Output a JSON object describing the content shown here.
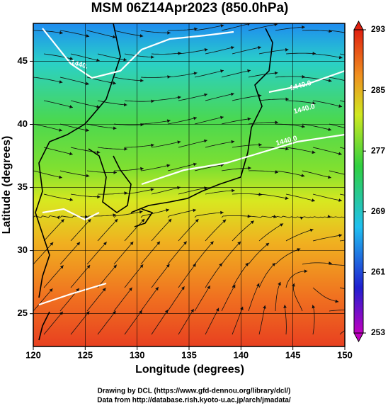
{
  "title": "MSM 06Z14Apr2023 (850.0hPa)",
  "x_label": "Longitude (degrees)",
  "y_label": "Latitude  (degrees)",
  "xlim": [
    120,
    150
  ],
  "xticks": [
    120,
    125,
    130,
    135,
    140,
    145,
    150
  ],
  "ylim": [
    22.4,
    48
  ],
  "yticks": [
    25,
    30,
    35,
    40,
    45
  ],
  "colorbar": {
    "lim": [
      253,
      293
    ],
    "ticks": [
      253,
      261,
      269,
      277,
      285,
      293
    ]
  },
  "contour_labels": [
    "1440.",
    "1440.0",
    "1440.0",
    "1440.0"
  ],
  "footer": [
    "Drawing by DCL (https://www.gfd-dennou.org/library/dcl/)",
    "Data from http://database.rish.kyoto-u.ac.jp/arch/jmadata/"
  ]
}
